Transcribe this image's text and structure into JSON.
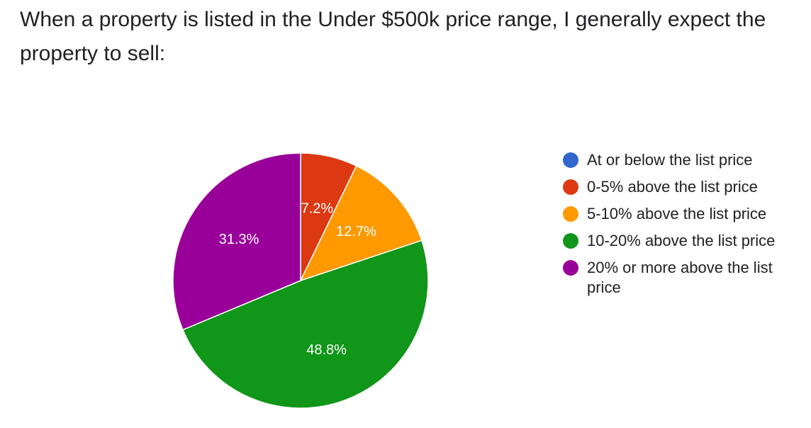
{
  "question": "When a property is listed in the Under $500k price range, I generally expect the property to sell:",
  "chart_data": {
    "type": "pie",
    "title": "When a property is listed in the Under $500k price range, I generally expect the property to sell:",
    "legend_position": "right",
    "start_angle_deg": 90,
    "direction": "clockwise",
    "slices": [
      {
        "label": "At or below the list price",
        "value": 0,
        "value_label": "",
        "color": "#3366cc"
      },
      {
        "label": "0-5% above the list price",
        "value": 7.2,
        "value_label": "7.2%",
        "color": "#dc3912"
      },
      {
        "label": "5-10% above the list price",
        "value": 12.7,
        "value_label": "12.7%",
        "color": "#ff9900"
      },
      {
        "label": "10-20% above the list price",
        "value": 48.8,
        "value_label": "48.8%",
        "color": "#109618"
      },
      {
        "label": "20% or more above the list price",
        "value": 31.3,
        "value_label": "31.3%",
        "color": "#990099"
      }
    ]
  }
}
